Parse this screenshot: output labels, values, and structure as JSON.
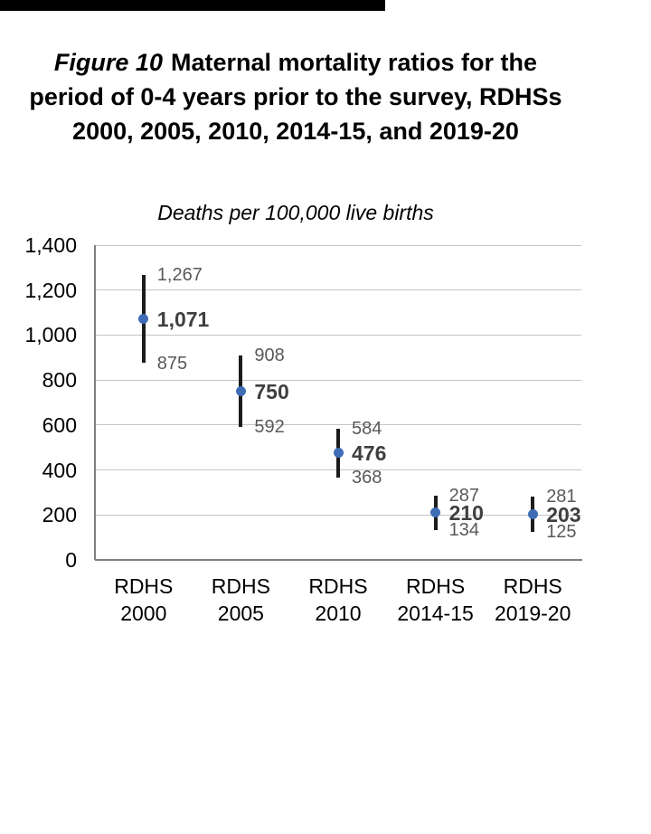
{
  "figure": {
    "title_prefix": "Figure 10",
    "title_rest": "Maternal mortality ratios for the period of 0-4 years prior to the survey, RDHSs 2000, 2005, 2010, 2014-15, and 2019-20",
    "subtitle": "Deaths per 100,000 live births"
  },
  "chart_data": {
    "type": "scatter",
    "variant": "point-estimates-with-confidence-interval-error-bars",
    "title": "Figure 10 Maternal mortality ratios for the period of 0-4 years prior to the survey, RDHSs 2000, 2005, 2010, 2014-15, and 2019-20",
    "subtitle": "Deaths per 100,000 live births",
    "categories": [
      [
        "RDHS",
        "2000"
      ],
      [
        "RDHS",
        "2005"
      ],
      [
        "RDHS",
        "2010"
      ],
      [
        "RDHS",
        "2014-15"
      ],
      [
        "RDHS",
        "2019-20"
      ]
    ],
    "series": [
      {
        "name": "Maternal mortality ratio",
        "values": [
          1071,
          750,
          476,
          210,
          203
        ],
        "ci_low": [
          875,
          592,
          368,
          134,
          125
        ],
        "ci_high": [
          1267,
          908,
          584,
          287,
          281
        ]
      }
    ],
    "value_labels": [
      "1,071",
      "750",
      "476",
      "210",
      "203"
    ],
    "ci_low_labels": [
      "875",
      "592",
      "368",
      "134",
      "125"
    ],
    "ci_high_labels": [
      "1,267",
      "908",
      "584",
      "287",
      "281"
    ],
    "y_ticks": [
      {
        "value": 1400,
        "label": "1,400"
      },
      {
        "value": 1200,
        "label": "1,200"
      },
      {
        "value": 1000,
        "label": "1,000"
      },
      {
        "value": 800,
        "label": "800"
      },
      {
        "value": 600,
        "label": "600"
      },
      {
        "value": 400,
        "label": "400"
      },
      {
        "value": 200,
        "label": "200"
      },
      {
        "value": 0,
        "label": "0"
      }
    ],
    "ylim": [
      0,
      1400
    ],
    "xlabel": "",
    "ylabel": "Deaths per 100,000 live births",
    "grid": true,
    "legend": false,
    "colors": {
      "marker": "#3e6db6",
      "error_bar": "#1c1c1c",
      "gridline": "#c4c4c4",
      "axis": "#7f7f7f",
      "value_label": "#3f3f3f",
      "ci_label": "#595959",
      "text": "#000000",
      "top_bar": "#000000"
    }
  }
}
